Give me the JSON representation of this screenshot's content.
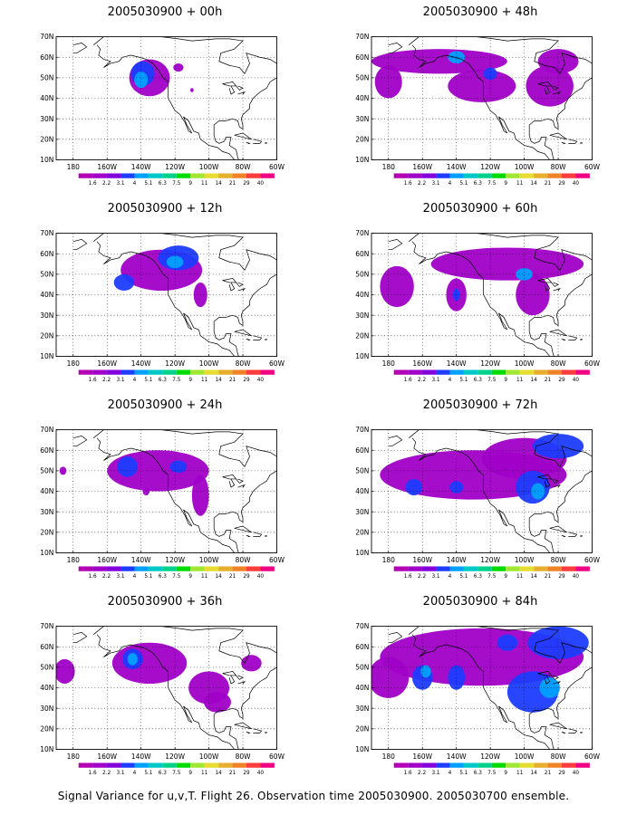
{
  "panels": [
    {
      "title": "2005030900 + 00h"
    },
    {
      "title": "2005030900 + 48h"
    },
    {
      "title": "2005030900 + 12h"
    },
    {
      "title": "2005030900 + 60h"
    },
    {
      "title": "2005030900 + 24h"
    },
    {
      "title": "2005030900 + 72h"
    },
    {
      "title": "2005030900 + 36h"
    },
    {
      "title": "2005030900 + 84h"
    }
  ],
  "lat_labels": [
    "70N",
    "60N",
    "50N",
    "40N",
    "30N",
    "20N",
    "10N"
  ],
  "lon_labels": [
    "180",
    "160W",
    "140W",
    "120W",
    "100W",
    "80W",
    "60W"
  ],
  "legend": {
    "labels": [
      "1.6",
      "2.2",
      "3.1",
      "4",
      "5.1",
      "6.3",
      "7.5",
      "9",
      "11",
      "14",
      "21",
      "29",
      "40"
    ],
    "colors": [
      "#a000c8",
      "#8200dc",
      "#1e3cff",
      "#00a0ff",
      "#00c8c8",
      "#00d28c",
      "#00dc00",
      "#a0e632",
      "#e6dc32",
      "#e6af2d",
      "#f08228",
      "#fa3c3c",
      "#f00082"
    ]
  },
  "caption": "Signal Variance for u,v,T. Flight 26. Observation time 2005030900. 2005030700 ensemble."
}
